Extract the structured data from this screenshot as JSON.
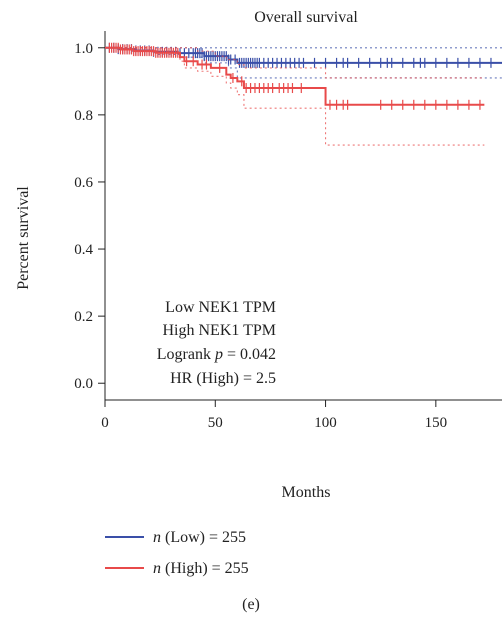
{
  "chart_data": {
    "type": "line",
    "title": "Overall survival",
    "xlabel": "Months",
    "ylabel": "Percent survival",
    "xlim": [
      0,
      180
    ],
    "ylim": [
      -0.05,
      1.05
    ],
    "x_ticks": [
      0,
      50,
      100,
      150
    ],
    "y_ticks": [
      0.0,
      0.2,
      0.4,
      0.6,
      0.8,
      1.0
    ],
    "x_tick_labels": [
      "0",
      "50",
      "100",
      "150"
    ],
    "y_tick_labels": [
      "0.0",
      "0.2",
      "0.4",
      "0.6",
      "0.8",
      "1.0"
    ],
    "grid": false,
    "series": [
      {
        "name": "Low NEK1 TPM",
        "color": "#3a4fa8",
        "curve": [
          [
            0,
            1.0
          ],
          [
            6,
            0.996
          ],
          [
            14,
            0.992
          ],
          [
            22,
            0.988
          ],
          [
            33,
            0.984
          ],
          [
            45,
            0.975
          ],
          [
            56,
            0.965
          ],
          [
            60,
            0.955
          ],
          [
            180,
            0.955
          ]
        ],
        "ci_upper": [
          [
            0,
            1.0
          ],
          [
            180,
            1.0
          ]
        ],
        "ci_lower": [
          [
            0,
            1.0
          ],
          [
            12,
            0.99
          ],
          [
            24,
            0.98
          ],
          [
            34,
            0.972
          ],
          [
            45,
            0.955
          ],
          [
            56,
            0.94
          ],
          [
            60,
            0.91
          ],
          [
            180,
            0.91
          ]
        ],
        "censor_x": [
          2,
          4,
          6,
          8,
          10,
          12,
          14,
          16,
          18,
          20,
          22,
          24,
          26,
          28,
          30,
          32,
          34,
          36,
          38,
          40,
          41,
          42,
          43,
          44,
          45,
          46,
          47,
          48,
          49,
          50,
          51,
          52,
          53,
          54,
          55,
          56,
          57,
          59,
          61,
          62,
          63,
          64,
          65,
          66,
          67,
          68,
          69,
          70,
          72,
          74,
          76,
          78,
          80,
          82,
          84,
          86,
          88,
          90,
          95,
          100,
          105,
          108,
          110,
          115,
          120,
          125,
          128,
          130,
          135,
          140,
          143,
          145,
          150,
          155,
          160,
          165,
          170,
          175
        ]
      },
      {
        "name": "High NEK1 TPM",
        "color": "#e84a4a",
        "curve": [
          [
            0,
            1.0
          ],
          [
            7,
            0.995
          ],
          [
            13,
            0.99
          ],
          [
            23,
            0.985
          ],
          [
            34,
            0.972
          ],
          [
            36,
            0.96
          ],
          [
            42,
            0.95
          ],
          [
            48,
            0.94
          ],
          [
            55,
            0.92
          ],
          [
            57,
            0.91
          ],
          [
            60,
            0.9
          ],
          [
            63,
            0.88
          ],
          [
            99,
            0.88
          ],
          [
            100,
            0.83
          ],
          [
            172,
            0.83
          ]
        ],
        "ci_upper": [
          [
            0,
            1.0
          ],
          [
            35,
            1.0
          ],
          [
            42,
            0.99
          ],
          [
            50,
            0.975
          ],
          [
            55,
            0.965
          ],
          [
            60,
            0.95
          ],
          [
            63,
            0.94
          ],
          [
            99,
            0.94
          ],
          [
            100,
            0.91
          ],
          [
            172,
            0.91
          ]
        ],
        "ci_lower": [
          [
            0,
            1.0
          ],
          [
            20,
            0.99
          ],
          [
            34,
            0.96
          ],
          [
            36,
            0.94
          ],
          [
            42,
            0.93
          ],
          [
            48,
            0.915
          ],
          [
            55,
            0.895
          ],
          [
            57,
            0.88
          ],
          [
            60,
            0.86
          ],
          [
            63,
            0.82
          ],
          [
            99,
            0.82
          ],
          [
            100,
            0.71
          ],
          [
            172,
            0.71
          ]
        ],
        "censor_x": [
          2,
          3,
          4,
          5,
          6,
          7,
          8,
          9,
          10,
          11,
          12,
          13,
          14,
          15,
          16,
          17,
          18,
          19,
          20,
          21,
          22,
          23,
          24,
          25,
          26,
          27,
          28,
          29,
          30,
          31,
          32,
          33,
          37,
          40,
          44,
          46,
          52,
          58,
          62,
          64,
          66,
          68,
          70,
          72,
          74,
          76,
          79,
          81,
          83,
          85,
          89,
          102,
          105,
          108,
          110,
          125,
          130,
          135,
          140,
          145,
          150,
          155,
          160,
          165,
          170
        ]
      }
    ],
    "annotations": {
      "line1": "Low NEK1 TPM",
      "line2": "High NEK1 TPM",
      "line3_prefix": "Logrank ",
      "line3_p": "p",
      "line3_suffix": " = 0.042",
      "line4": "HR (High) = 2.5"
    },
    "legend": {
      "placement": "bottom-left",
      "items": [
        {
          "n_italic": "n",
          "text": " (Low) = 255",
          "color": "#3a4fa8"
        },
        {
          "n_italic": "n",
          "text": " (High) = 255",
          "color": "#e84a4a"
        }
      ]
    },
    "panel_label": "(e)"
  }
}
